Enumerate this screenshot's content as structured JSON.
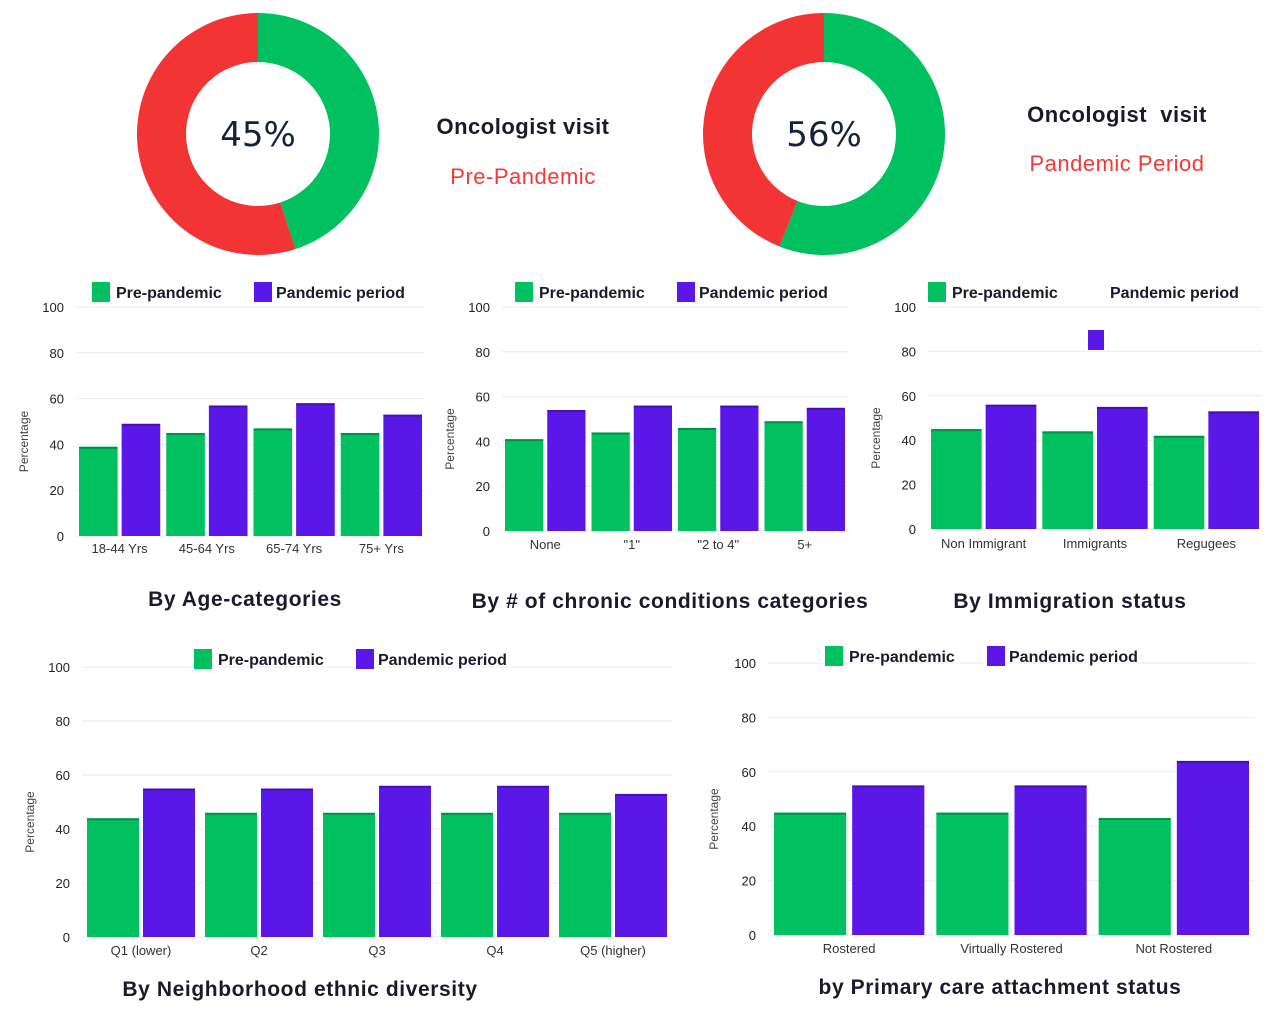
{
  "colors": {
    "pre": "#00c060",
    "pandemic": "#5b16e8",
    "donut_red": "#f23434",
    "donut_green": "#00c060",
    "subtitle_red": "#f03a3a",
    "text_dark": "#16213a"
  },
  "chart_data": [
    {
      "type": "pie",
      "variant": "donut",
      "center_label": "45%",
      "value": 45,
      "title": "Oncologist visit",
      "subtitle": "Pre-Pandemic"
    },
    {
      "type": "pie",
      "variant": "donut",
      "center_label": "56%",
      "value": 56,
      "title": "Oncologist  visit",
      "subtitle": "Pandemic Period"
    },
    {
      "type": "bar",
      "title": "By Age-categories",
      "ylabel": "Percentage",
      "ylim": [
        0,
        100
      ],
      "yticks": [
        0,
        20,
        40,
        60,
        80,
        100
      ],
      "legend": [
        "Pre-pandemic",
        "Pandemic period"
      ],
      "categories": [
        "18-44 Yrs",
        "45-64 Yrs",
        "65-74 Yrs",
        "75+ Yrs"
      ],
      "series": [
        {
          "name": "Pre-pandemic",
          "values": [
            39,
            45,
            47,
            45
          ]
        },
        {
          "name": "Pandemic period",
          "values": [
            49,
            57,
            58,
            53
          ]
        }
      ]
    },
    {
      "type": "bar",
      "title": "By # of chronic conditions categories",
      "ylabel": "Percentage",
      "ylim": [
        0,
        100
      ],
      "yticks": [
        0,
        20,
        40,
        60,
        80,
        100
      ],
      "legend": [
        "Pre-pandemic",
        "Pandemic period"
      ],
      "categories": [
        "None",
        "\"1\"",
        "\"2 to 4\"",
        "5+"
      ],
      "series": [
        {
          "name": "Pre-pandemic",
          "values": [
            41,
            44,
            46,
            49
          ]
        },
        {
          "name": "Pandemic period",
          "values": [
            54,
            56,
            56,
            55
          ]
        }
      ]
    },
    {
      "type": "bar",
      "title": "By Immigration status",
      "ylabel": "Percentage",
      "ylim": [
        0,
        100
      ],
      "yticks": [
        0,
        20,
        40,
        60,
        80,
        100
      ],
      "legend": [
        "Pre-pandemic",
        "Pandemic period"
      ],
      "categories": [
        "Non Immigrant",
        "Immigrants",
        "Regugees"
      ],
      "series": [
        {
          "name": "Pre-pandemic",
          "values": [
            45,
            44,
            42
          ]
        },
        {
          "name": "Pandemic period",
          "values": [
            56,
            55,
            53
          ]
        }
      ]
    },
    {
      "type": "bar",
      "title": "By Neighborhood ethnic diversity",
      "ylabel": "Percentage",
      "ylim": [
        0,
        100
      ],
      "yticks": [
        0,
        20,
        40,
        60,
        80,
        100
      ],
      "legend": [
        "Pre-pandemic",
        "Pandemic period"
      ],
      "categories": [
        "Q1 (lower)",
        "Q2",
        "Q3",
        "Q4",
        "Q5 (higher)"
      ],
      "series": [
        {
          "name": "Pre-pandemic",
          "values": [
            44,
            46,
            46,
            46,
            46
          ]
        },
        {
          "name": "Pandemic period",
          "values": [
            55,
            55,
            56,
            56,
            53
          ]
        }
      ]
    },
    {
      "type": "bar",
      "title": "by Primary care attachment status",
      "ylabel": "Percentage",
      "ylim": [
        0,
        100
      ],
      "yticks": [
        0,
        20,
        40,
        60,
        80,
        100
      ],
      "legend": [
        "Pre-pandemic",
        "Pandemic period"
      ],
      "categories": [
        "Rostered",
        "Virtually Rostered",
        "Not Rostered"
      ],
      "series": [
        {
          "name": "Pre-pandemic",
          "values": [
            45,
            45,
            43
          ]
        },
        {
          "name": "Pandemic period",
          "values": [
            55,
            55,
            64
          ]
        }
      ]
    }
  ]
}
